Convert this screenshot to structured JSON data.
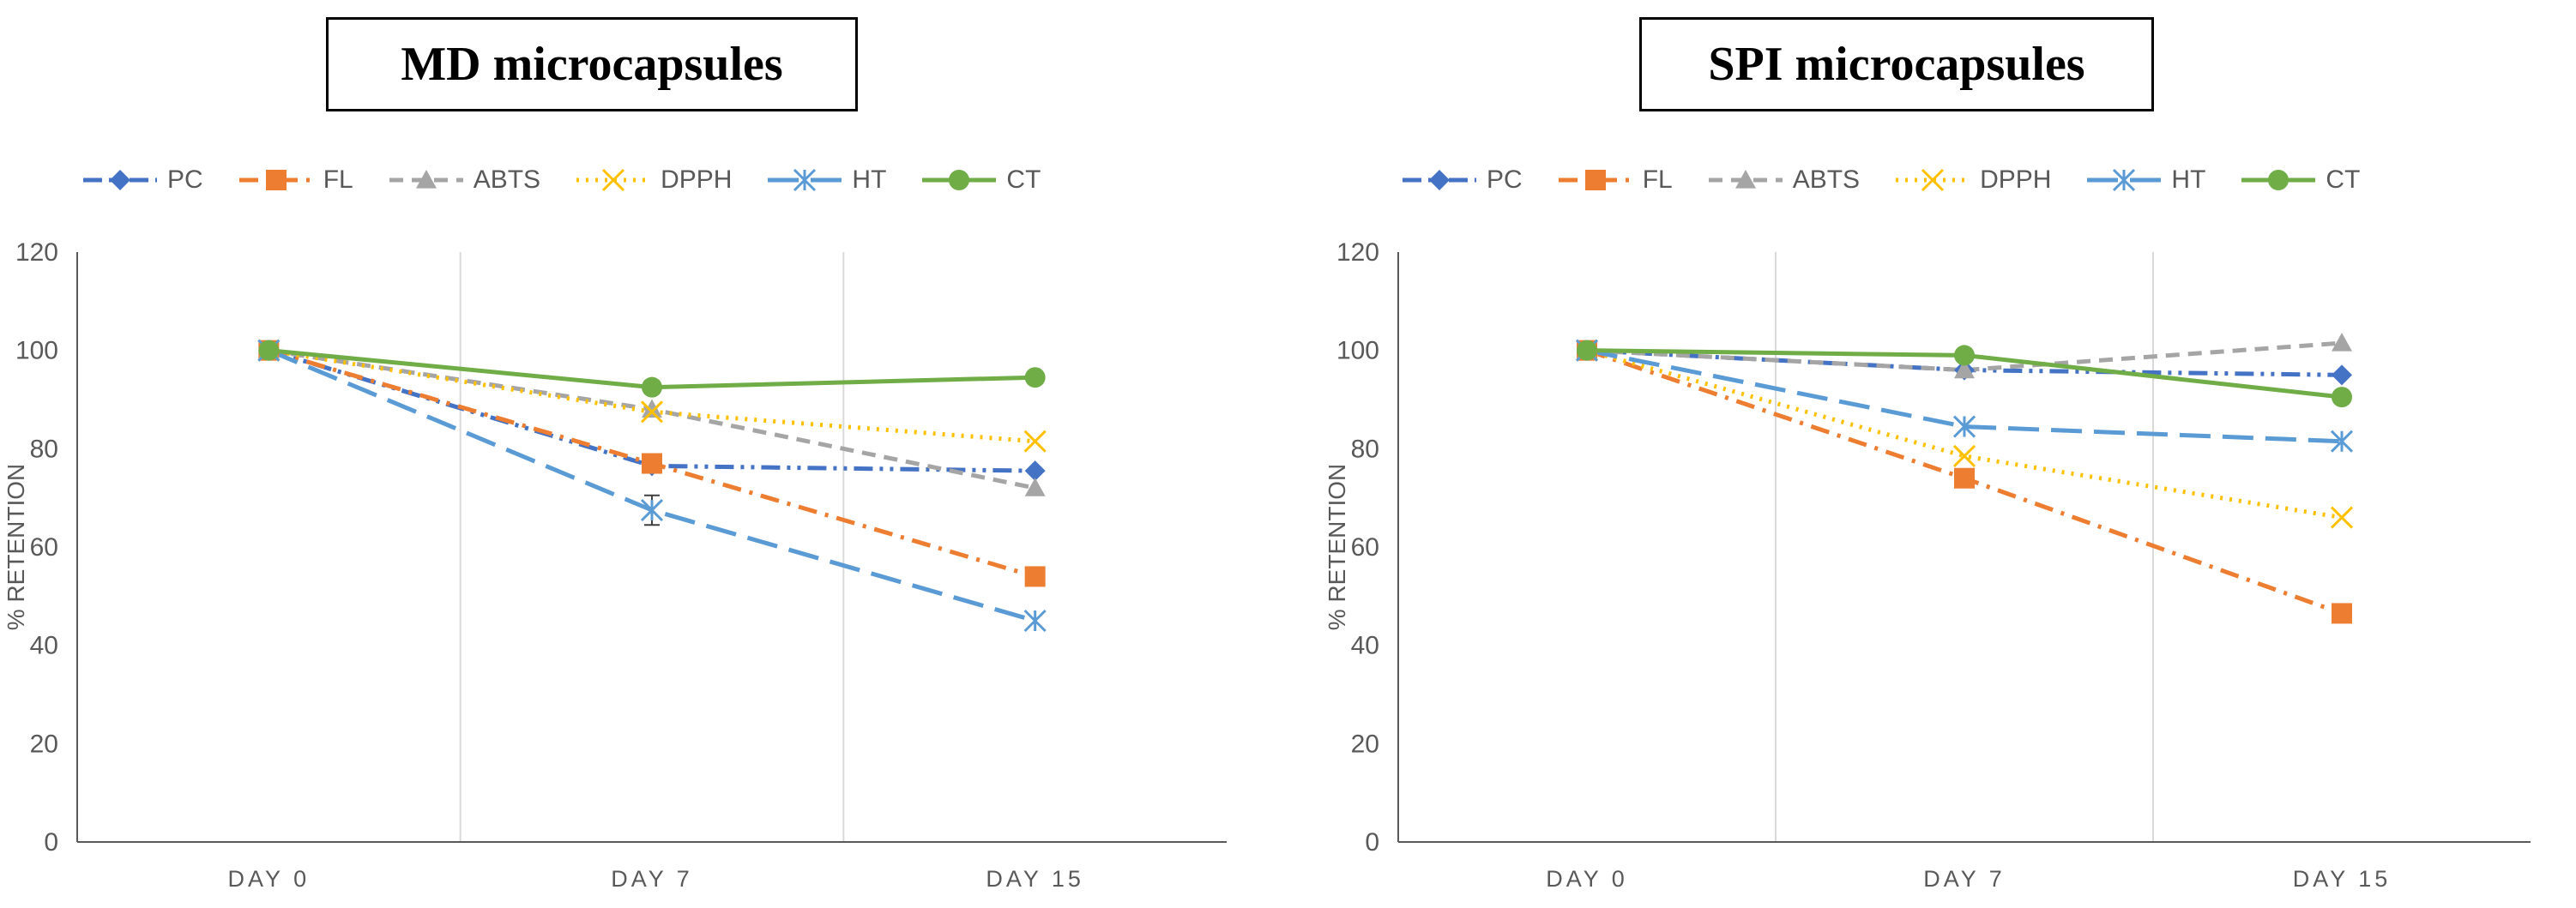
{
  "chart_data": [
    {
      "type": "line",
      "title": "MD microcapsules",
      "xlabel": "",
      "ylabel": "% RETENTION",
      "categories": [
        "DAY 0",
        "DAY 7",
        "DAY 15"
      ],
      "ylim": [
        0,
        120
      ],
      "yticks": [
        0,
        20,
        40,
        60,
        80,
        100,
        120
      ],
      "grid": "vertical",
      "legend_position": "top",
      "series": [
        {
          "name": "PC",
          "values": [
            100,
            76.5,
            75.5
          ],
          "color": "#4472C4",
          "dash": "dashdotdot",
          "marker": "diamond"
        },
        {
          "name": "FL",
          "values": [
            100,
            77,
            54
          ],
          "color": "#ED7D31",
          "dash": "dashdot",
          "marker": "square"
        },
        {
          "name": "ABTS",
          "values": [
            100,
            88,
            72
          ],
          "color": "#A5A5A5",
          "dash": "dash",
          "marker": "triangle"
        },
        {
          "name": "DPPH",
          "values": [
            100,
            87.5,
            81.5
          ],
          "color": "#FFC000",
          "dash": "dot",
          "marker": "x"
        },
        {
          "name": "HT",
          "values": [
            100,
            67.5,
            45
          ],
          "color": "#5B9BD5",
          "dash": "longdash",
          "marker": "star",
          "error": [
            0,
            3,
            0
          ]
        },
        {
          "name": "CT",
          "values": [
            100,
            92.5,
            94.5
          ],
          "color": "#70AD47",
          "dash": "solid",
          "marker": "circle"
        }
      ]
    },
    {
      "type": "line",
      "title": "SPI microcapsules",
      "xlabel": "",
      "ylabel": "% RETENTION",
      "categories": [
        "DAY 0",
        "DAY 7",
        "DAY 15"
      ],
      "ylim": [
        0,
        120
      ],
      "yticks": [
        0,
        20,
        40,
        60,
        80,
        100,
        120
      ],
      "grid": "vertical",
      "legend_position": "top",
      "series": [
        {
          "name": "PC",
          "values": [
            100,
            96,
            95
          ],
          "color": "#4472C4",
          "dash": "dashdotdot",
          "marker": "diamond"
        },
        {
          "name": "FL",
          "values": [
            100,
            74,
            46.5
          ],
          "color": "#ED7D31",
          "dash": "dashdot",
          "marker": "square"
        },
        {
          "name": "ABTS",
          "values": [
            100,
            96,
            101.5
          ],
          "color": "#A5A5A5",
          "dash": "dash",
          "marker": "triangle"
        },
        {
          "name": "DPPH",
          "values": [
            100,
            78.5,
            66
          ],
          "color": "#FFC000",
          "dash": "dot",
          "marker": "x"
        },
        {
          "name": "HT",
          "values": [
            100,
            84.5,
            81.5
          ],
          "color": "#5B9BD5",
          "dash": "longdash",
          "marker": "star"
        },
        {
          "name": "CT",
          "values": [
            100,
            99,
            90.5
          ],
          "color": "#70AD47",
          "dash": "solid",
          "marker": "circle"
        }
      ]
    }
  ]
}
